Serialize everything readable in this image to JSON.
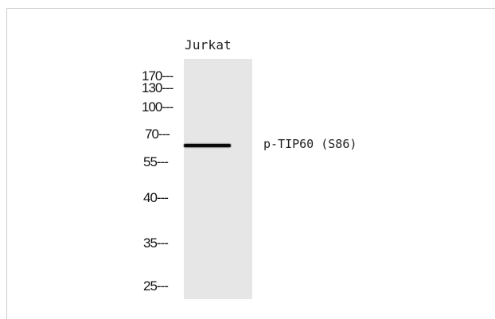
{
  "blot": {
    "lane_label": "Jurkat",
    "target_label": "p-TIP60 (S86)",
    "markers": [
      {
        "label": "170---"
      },
      {
        "label": "130---"
      },
      {
        "label": "100---"
      },
      {
        "label": "70---"
      },
      {
        "label": "55---"
      },
      {
        "label": "40---"
      },
      {
        "label": "35---"
      },
      {
        "label": "25---"
      }
    ]
  }
}
